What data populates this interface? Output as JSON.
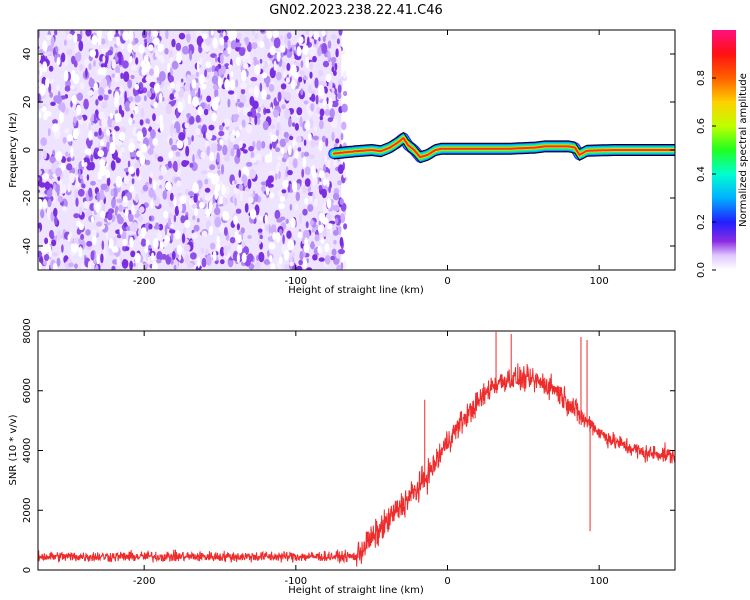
{
  "title": "GN02.2023.238.22.41.C46",
  "chart_data": [
    {
      "type": "heatmap",
      "xlabel": "Height of straight line (km)",
      "ylabel": "Frequency (Hz)",
      "xlim": [
        -270,
        150
      ],
      "ylim": [
        -50,
        50
      ],
      "xticks": [
        -200,
        -100,
        0,
        100
      ],
      "yticks": [
        -40,
        -20,
        0,
        20,
        40
      ],
      "noise_region_x": [
        -270,
        -70
      ],
      "signal_ridge": {
        "x": [
          -75,
          -68,
          -60,
          -50,
          -44,
          -38,
          -33,
          -29,
          -26,
          -22,
          -18,
          -13,
          -8,
          -4,
          0,
          20,
          40,
          58,
          64,
          72,
          80,
          84,
          87,
          92,
          110,
          150
        ],
        "y": [
          -1.5,
          -1,
          -0.5,
          0,
          -0.5,
          1,
          3,
          5,
          2,
          0,
          -3,
          -2,
          0,
          0.5,
          0.5,
          0.5,
          0.5,
          1,
          1.5,
          1.5,
          1.5,
          1,
          -2,
          -0.3,
          0,
          0
        ]
      },
      "colorbar": {
        "label": "Normalized spectral amplitude",
        "range": [
          0,
          1
        ],
        "ticks": [
          0.0,
          0.2,
          0.4,
          0.6,
          0.8
        ]
      }
    },
    {
      "type": "line",
      "xlabel": "Height of straight line (km)",
      "ylabel": "SNR (10 * v/v)",
      "xlim": [
        -270,
        150
      ],
      "ylim": [
        0,
        8000
      ],
      "xticks": [
        -200,
        -100,
        0,
        100
      ],
      "yticks": [
        0,
        2000,
        4000,
        6000,
        8000
      ],
      "series_color": "#ee2c2c",
      "trend": {
        "x": [
          -270,
          -150,
          -60,
          -55,
          -45,
          -35,
          -20,
          -10,
          0,
          10,
          20,
          30,
          40,
          50,
          60,
          70,
          80,
          90,
          95,
          100,
          110,
          120,
          130,
          140,
          150
        ],
        "y": [
          450,
          450,
          450,
          800,
          1300,
          1900,
          2700,
          3400,
          4300,
          5000,
          5600,
          6200,
          6400,
          6400,
          6300,
          6100,
          5600,
          5000,
          4900,
          4600,
          4300,
          4100,
          3900,
          3900,
          3800
        ]
      },
      "spikes": [
        {
          "x": -15,
          "y": 5700
        },
        {
          "x": 32,
          "y": 8000
        },
        {
          "x": 42,
          "y": 7900
        },
        {
          "x": 88,
          "y": 7800
        },
        {
          "x": 92,
          "y": 7700
        }
      ],
      "dips": [
        {
          "x": 94,
          "y": 1300
        }
      ]
    }
  ]
}
